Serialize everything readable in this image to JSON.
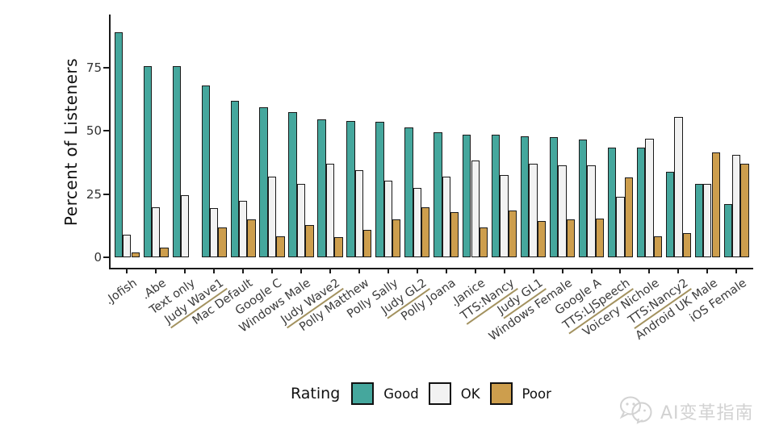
{
  "chart_data": {
    "type": "bar",
    "title": "",
    "xlabel": "",
    "ylabel": "Percent of Listeners",
    "ylim": [
      0,
      92
    ],
    "yticks": [
      0,
      25,
      50,
      75
    ],
    "grid": false,
    "legend_title": "Rating",
    "legend_position": "bottom",
    "categories": [
      ".Jofish",
      ".Abe",
      "Text only",
      "Judy Wave1",
      "Mac Default",
      "Google C",
      "Windows Male",
      "Judy Wave2",
      "Polly Matthew",
      "Polly Sally",
      "Judy GL2",
      "Polly Joana",
      ".Janice",
      "TTS:Nancy",
      "Judy GL1",
      "Windows Female",
      "Google A",
      "TTS:LJSpeech",
      "Voicery Nichole",
      "TTS:Nancy2",
      "Android UK Male",
      "iOS Female"
    ],
    "underlined_categories": [
      "Judy Wave1",
      "Judy Wave2",
      "Judy GL2",
      "TTS:Nancy",
      "Judy GL1",
      "TTS:LJSpeech",
      "TTS:Nancy2"
    ],
    "series": [
      {
        "name": "Good",
        "color": "#45a79d",
        "values": [
          89,
          75.5,
          75.5,
          68,
          62,
          59.5,
          57.5,
          54.5,
          54,
          53.5,
          51.5,
          49.5,
          48.5,
          48.5,
          48,
          47.5,
          46.5,
          43.5,
          43.5,
          34,
          29,
          21
        ]
      },
      {
        "name": "OK",
        "color": "#f2f2f2",
        "values": [
          9,
          20,
          24.5,
          19.5,
          22.5,
          32,
          29,
          37,
          34.5,
          30.5,
          27.5,
          32,
          38.5,
          32.5,
          37,
          36.5,
          36.5,
          24,
          47,
          55.5,
          29,
          40.5
        ]
      },
      {
        "name": "Poor",
        "color": "#cd9e4d",
        "values": [
          2,
          4,
          0,
          12,
          15,
          8.5,
          13,
          8,
          11,
          15,
          20,
          18,
          12,
          18.5,
          14.5,
          15,
          15.5,
          31.5,
          8.5,
          9.5,
          41.5,
          37
        ]
      }
    ]
  },
  "colors": {
    "axis": "#1a1a1a",
    "bar_stroke": "#1a1a1a",
    "label_underline": "#a3925f",
    "watermark": "#d2d2d2"
  },
  "watermark": {
    "icon": "wechat-icon",
    "text": "AI变革指南"
  }
}
